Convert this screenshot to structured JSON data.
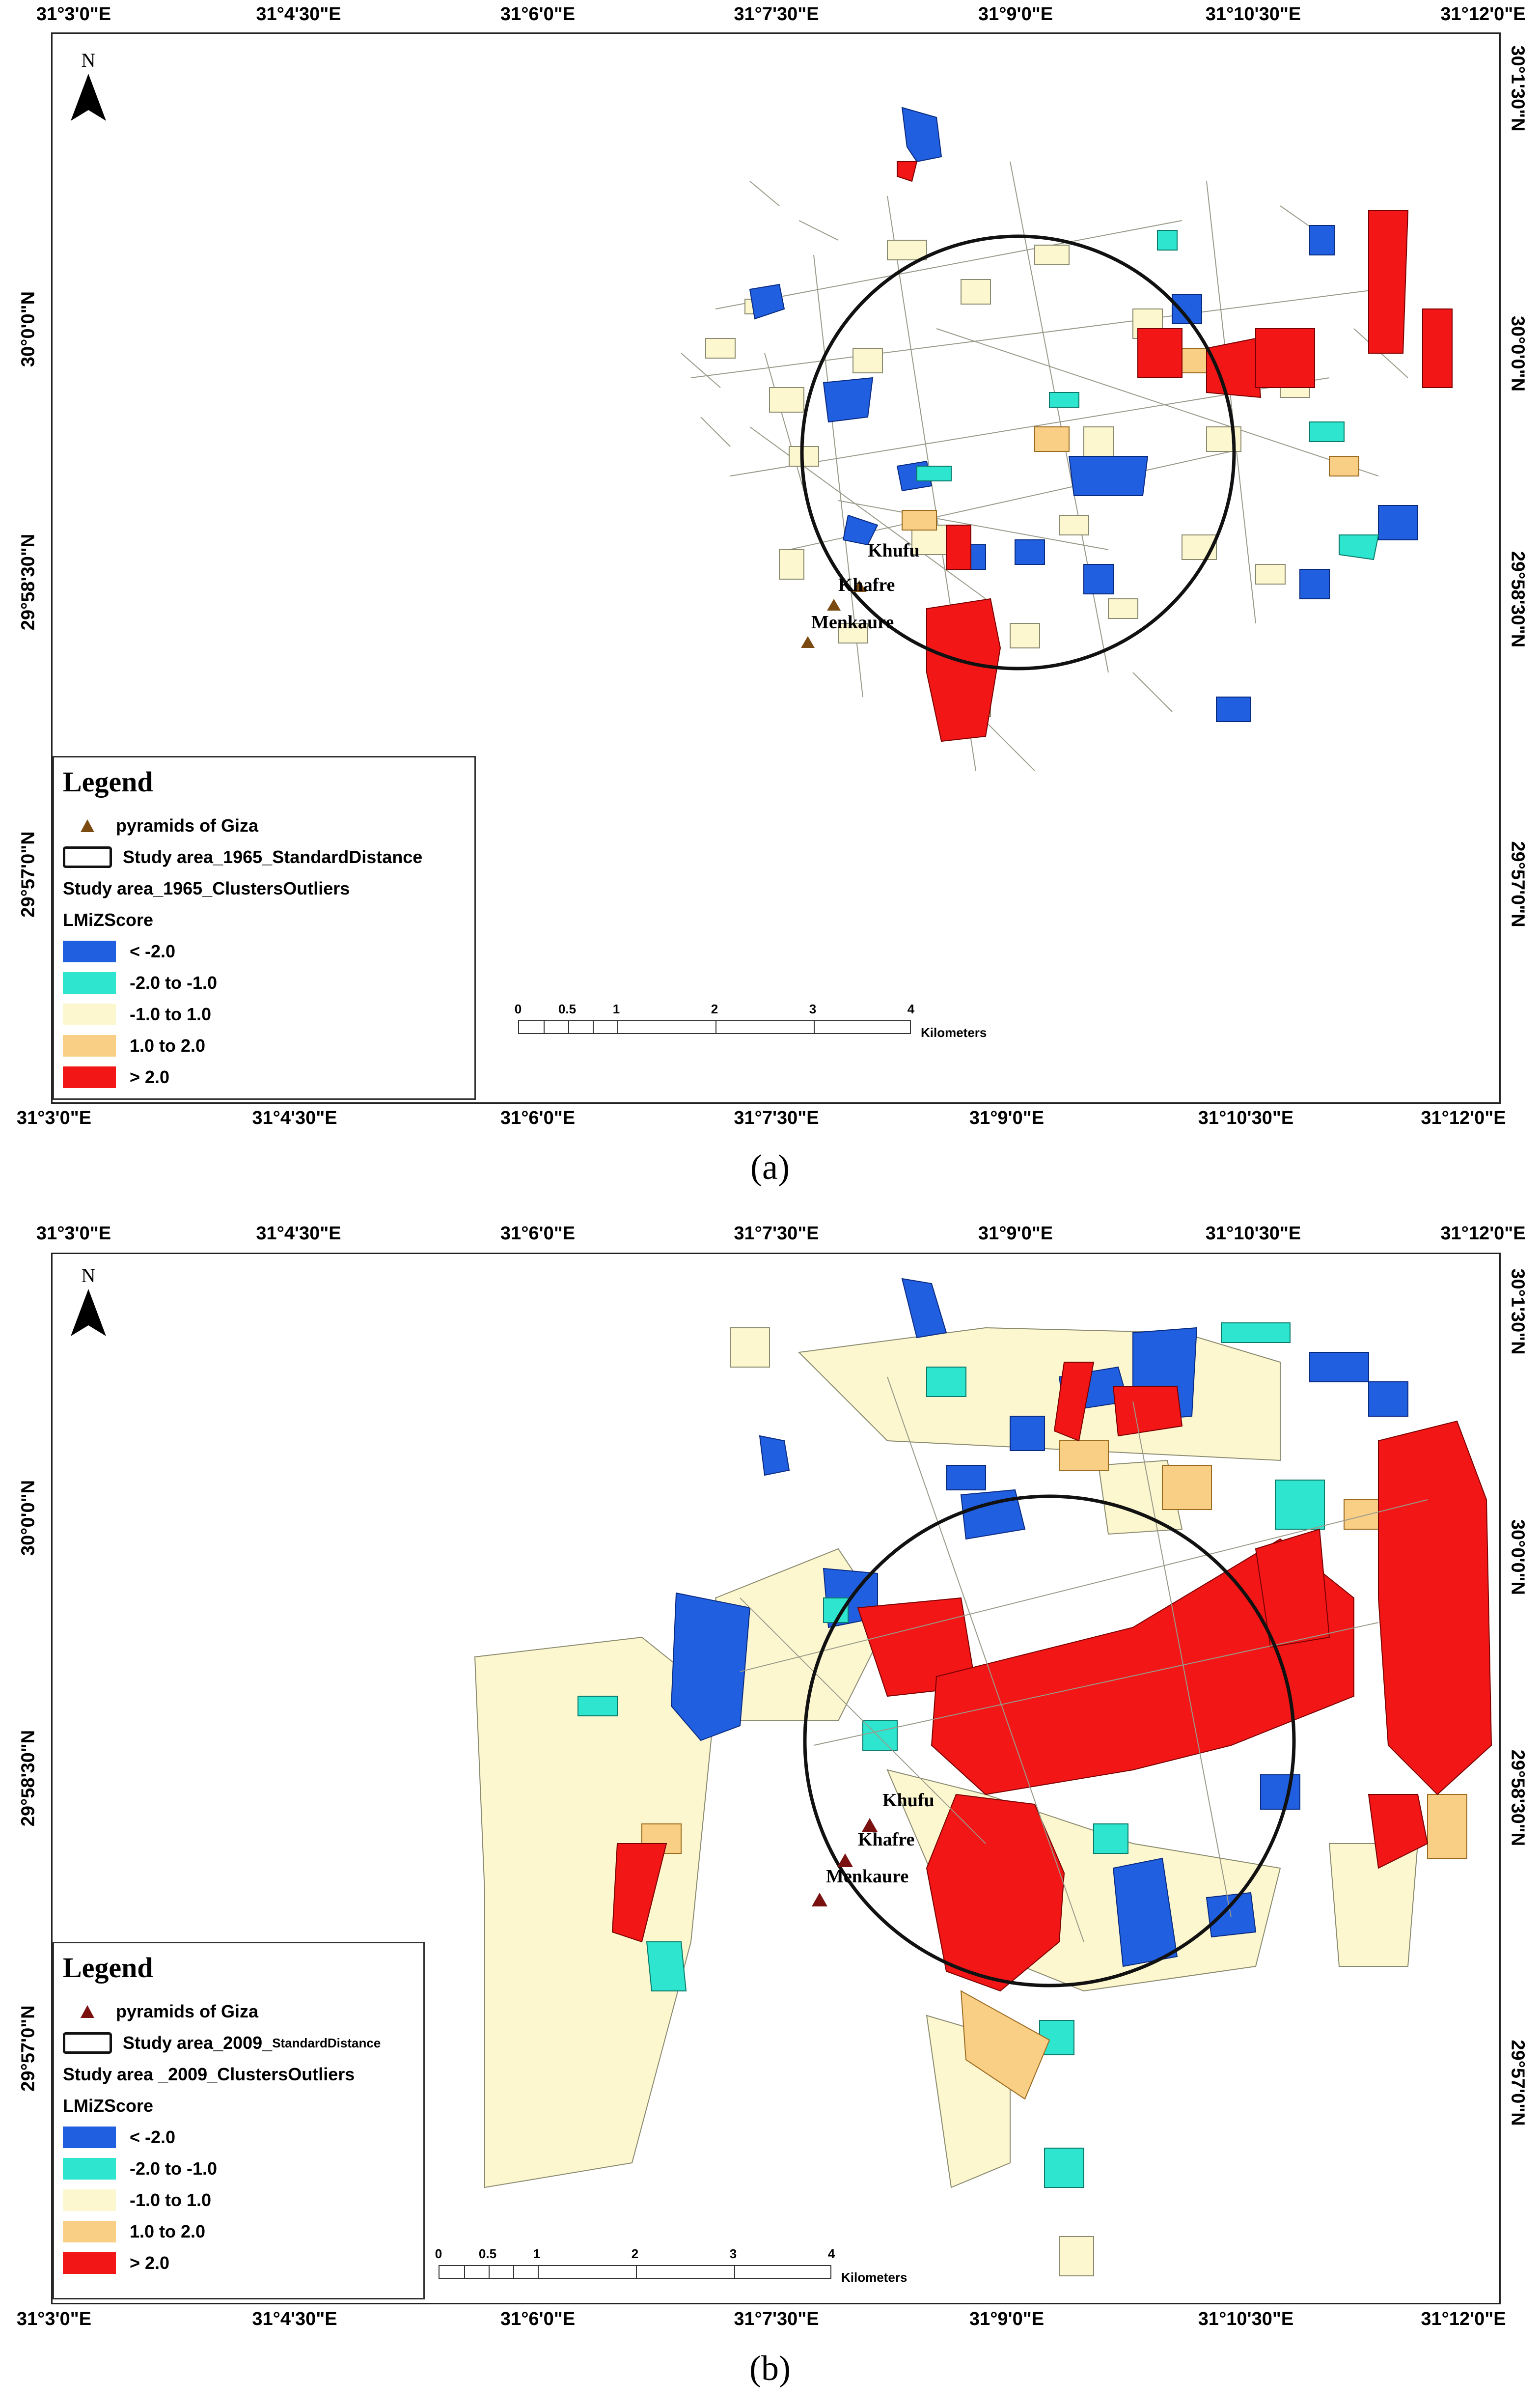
{
  "figure": {
    "lon_labels": [
      "31°3'0\"E",
      "31°4'30\"E",
      "31°6'0\"E",
      "31°7'30\"E",
      "31°9'0\"E",
      "31°10'30\"E",
      "31°12'0\"E"
    ],
    "lat_labels": [
      "30°1'30\"N",
      "30°0'0\"N",
      "29°58'30\"N",
      "29°57'0\"N"
    ]
  },
  "panel_a": {
    "caption": "(a)",
    "north_label": "N",
    "pyramids": {
      "khufu": "Khufu",
      "khafre": "Khafre",
      "menkaure": "Menkaure"
    },
    "legend": {
      "title": "Legend",
      "pyramids_label": "pyramids of Giza",
      "std_distance_label": "Study area_1965_StandardDistance",
      "clusters_label": "Study area_1965_ClustersOutliers",
      "field_label": "LMiZScore",
      "classes": [
        {
          "label": "< -2.0",
          "color": "#1f5fe0"
        },
        {
          "label": "-2.0 to -1.0",
          "color": "#2ee6cf"
        },
        {
          "label": "-1.0 to 1.0",
          "color": "#fcf7cf"
        },
        {
          "label": "1.0 to 2.0",
          "color": "#f9cf86"
        },
        {
          "label": "> 2.0",
          "color": "#f21616"
        }
      ],
      "marker_color": "#7a4a10"
    },
    "scale": {
      "ticks": [
        "0",
        "0.5",
        "1",
        "2",
        "3",
        "4"
      ],
      "unit": "Kilometers"
    }
  },
  "panel_b": {
    "caption": "(b)",
    "north_label": "N",
    "pyramids": {
      "khufu": "Khufu",
      "khafre": "Khafre",
      "menkaure": "Menkaure"
    },
    "legend": {
      "title": "Legend",
      "pyramids_label": "pyramids of Giza",
      "std_distance_label_main": "Study area_2009_",
      "std_distance_label_small": "StandardDistance",
      "clusters_label": "Study area _2009_ClustersOutliers",
      "field_label": "LMiZScore",
      "classes": [
        {
          "label": "< -2.0",
          "color": "#1f5fe0"
        },
        {
          "label": "-2.0 to -1.0",
          "color": "#2ee6cf"
        },
        {
          "label": "-1.0 to 1.0",
          "color": "#fcf7cf"
        },
        {
          "label": "1.0 to 2.0",
          "color": "#f9cf86"
        },
        {
          "label": "> 2.0",
          "color": "#f21616"
        }
      ],
      "marker_color": "#7b1010"
    },
    "scale": {
      "ticks": [
        "0",
        "0.5",
        "1",
        "2",
        "3",
        "4"
      ],
      "unit": "Kilometers"
    }
  }
}
